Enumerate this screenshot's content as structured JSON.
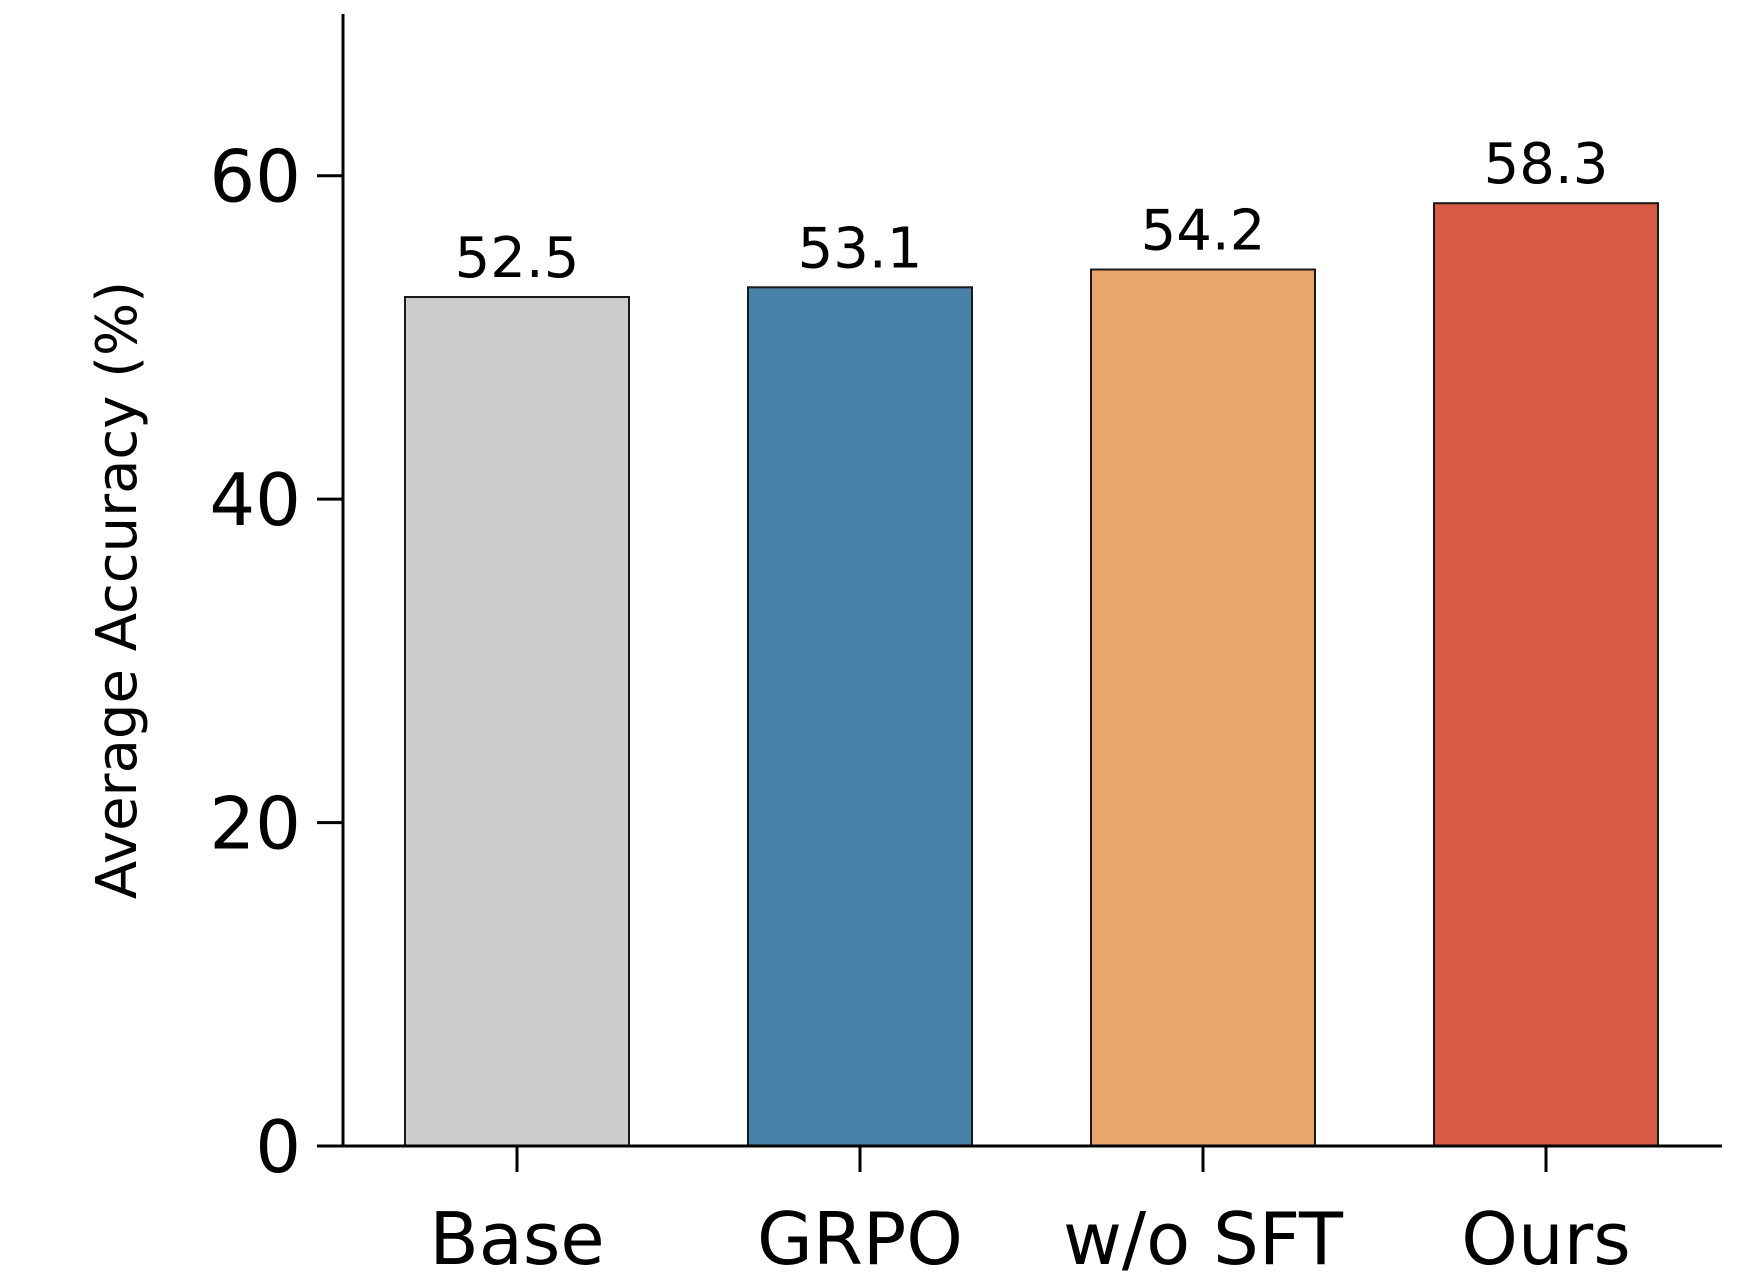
{
  "chart_data": {
    "type": "bar",
    "title": "",
    "xlabel": "",
    "ylabel": "Average Accuracy (%)",
    "categories": [
      "Base",
      "GRPO",
      "w/o SFT",
      "Ours"
    ],
    "values": [
      52.5,
      53.1,
      54.2,
      58.3
    ],
    "value_labels": [
      "52.5",
      "53.1",
      "54.2",
      "58.3"
    ],
    "colors": [
      "#cccccc",
      "#4882a8",
      "#e8a66d",
      "#d85b43"
    ],
    "edge_color": "#1a1a1a",
    "ylim": [
      0,
      70
    ],
    "yticks": [
      0,
      20,
      40,
      60
    ],
    "ytick_labels": [
      "0",
      "20",
      "40",
      "60"
    ],
    "grid": false,
    "spines": [
      "left",
      "bottom"
    ]
  }
}
